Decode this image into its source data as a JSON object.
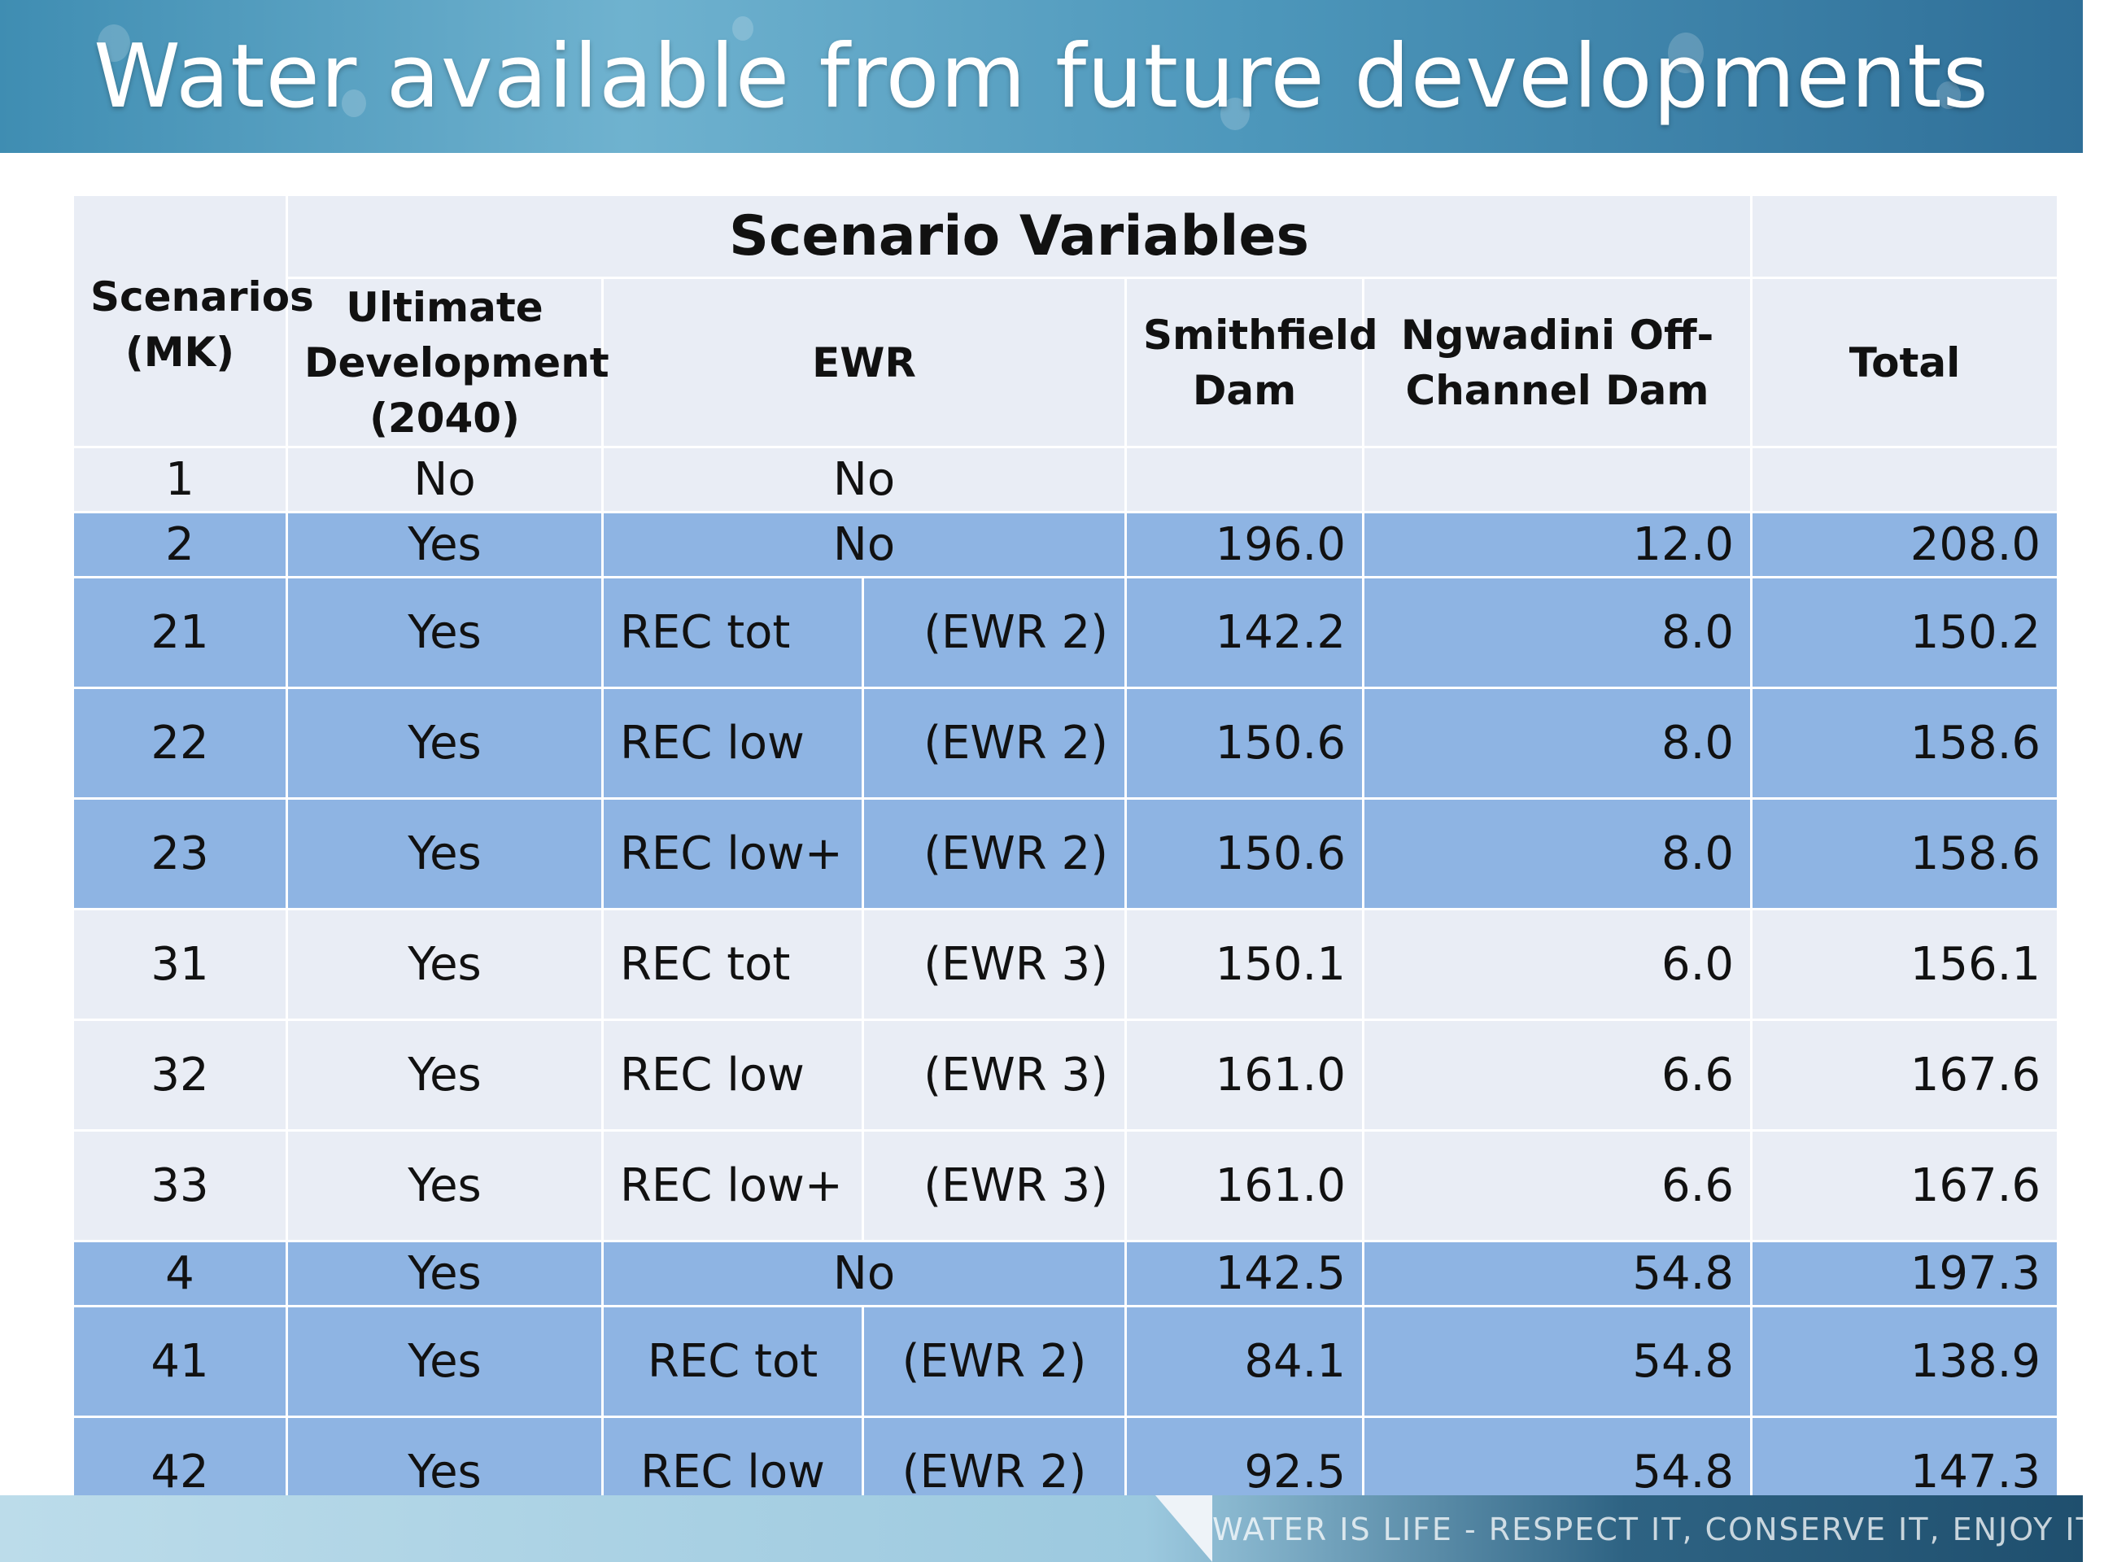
{
  "slide": {
    "title": "Water available from future developments",
    "footer": "WATER IS LIFE - RESPECT IT, CONSERVE IT, ENJOY IT."
  },
  "table": {
    "group_header": "Scenario Variables",
    "headers": {
      "scenarios": "Scenarios (MK)",
      "ultimate": "Ultimate Development (2040)",
      "ewr": "EWR",
      "smithfield": "Smithfield Dam",
      "ngwadini": "Ngwadini Off-Channel Dam",
      "total": "Total"
    },
    "rows": [
      {
        "scenario": "1",
        "ultimate": "No",
        "ewr": "No",
        "ewr_class": "",
        "smithfield": "",
        "ngwadini": "",
        "total": ""
      },
      {
        "scenario": "2",
        "ultimate": "Yes",
        "ewr": "No",
        "ewr_class": "",
        "smithfield": "196.0",
        "ngwadini": "12.0",
        "total": "208.0"
      },
      {
        "scenario": "21",
        "ultimate": "Yes",
        "ewr": "REC tot",
        "ewr_class": "(EWR 2)",
        "smithfield": "142.2",
        "ngwadini": "8.0",
        "total": "150.2"
      },
      {
        "scenario": "22",
        "ultimate": "Yes",
        "ewr": "REC low",
        "ewr_class": "(EWR 2)",
        "smithfield": "150.6",
        "ngwadini": "8.0",
        "total": "158.6"
      },
      {
        "scenario": "23",
        "ultimate": "Yes",
        "ewr": "REC low+",
        "ewr_class": "(EWR 2)",
        "smithfield": "150.6",
        "ngwadini": "8.0",
        "total": "158.6"
      },
      {
        "scenario": "31",
        "ultimate": "Yes",
        "ewr": "REC tot",
        "ewr_class": "(EWR 3)",
        "smithfield": "150.1",
        "ngwadini": "6.0",
        "total": "156.1"
      },
      {
        "scenario": "32",
        "ultimate": "Yes",
        "ewr": "REC low",
        "ewr_class": "(EWR 3)",
        "smithfield": "161.0",
        "ngwadini": "6.6",
        "total": "167.6"
      },
      {
        "scenario": "33",
        "ultimate": "Yes",
        "ewr": "REC low+",
        "ewr_class": "(EWR 3)",
        "smithfield": "161.0",
        "ngwadini": "6.6",
        "total": "167.6"
      },
      {
        "scenario": "4",
        "ultimate": "Yes",
        "ewr": "No",
        "ewr_class": "",
        "smithfield": "142.5",
        "ngwadini": "54.8",
        "total": "197.3"
      },
      {
        "scenario": "41",
        "ultimate": "Yes",
        "ewr": "REC tot",
        "ewr_class": "(EWR 2)",
        "smithfield": "84.1",
        "ngwadini": "54.8",
        "total": "138.9"
      },
      {
        "scenario": "42",
        "ultimate": "Yes",
        "ewr": "REC low",
        "ewr_class": "(EWR 2)",
        "smithfield": "92.5",
        "ngwadini": "54.8",
        "total": "147.3"
      }
    ]
  },
  "colors": {
    "row_light": "#e9edf5",
    "row_blue": "#8eb4e3",
    "title_bar": "#4d97bb"
  }
}
